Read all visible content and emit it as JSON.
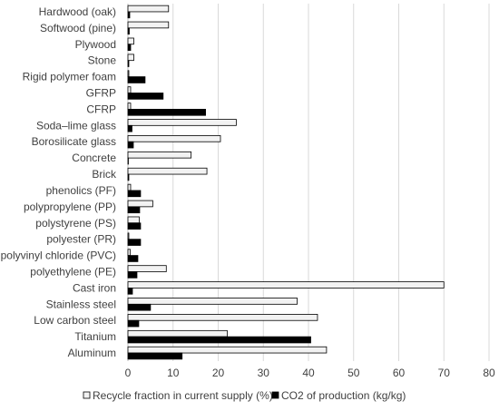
{
  "chart_data": {
    "type": "bar",
    "orientation": "horizontal",
    "title": "",
    "xlabel": "",
    "ylabel": "",
    "xlim": [
      0,
      80
    ],
    "xticks": [
      0,
      10,
      20,
      30,
      40,
      50,
      60,
      70,
      80
    ],
    "grid": true,
    "legend_position": "bottom",
    "categories": [
      "Hardwood (oak)",
      "Softwood (pine)",
      "Plywood",
      "Stone",
      "Rigid polymer foam",
      "GFRP",
      "CFRP",
      "Soda–lime glass",
      "Borosilicate glass",
      "Concrete",
      "Brick",
      "phenolics (PF)",
      "polypropylene (PP)",
      "polystyrene (PS)",
      "polyester (PR)",
      "polyvinyl chloride (PVC)",
      "polyethylene (PE)",
      "Cast iron",
      "Stainless steel",
      "Low carbon steel",
      "Titanium",
      "Aluminum"
    ],
    "series": [
      {
        "name": "Recycle fraction in current supply (%)",
        "color": "#f2f2f2",
        "stroke": "#000000",
        "values": [
          9,
          9,
          1.3,
          1.3,
          0.2,
          0.6,
          0.6,
          24,
          20.5,
          14,
          17.5,
          0.6,
          5.5,
          2.5,
          0.2,
          0.5,
          8.5,
          70,
          37.5,
          42,
          22,
          44
        ]
      },
      {
        "name": "CO2 of production (kg/kg)",
        "color": "#000000",
        "stroke": "#000000",
        "values": [
          0.4,
          0.3,
          0.6,
          0.2,
          3.8,
          7.8,
          17.2,
          0.9,
          1.2,
          0.1,
          0.2,
          2.8,
          2.6,
          2.8,
          2.8,
          2.2,
          2.0,
          1.0,
          5.0,
          2.4,
          40.5,
          12.0
        ]
      }
    ]
  }
}
